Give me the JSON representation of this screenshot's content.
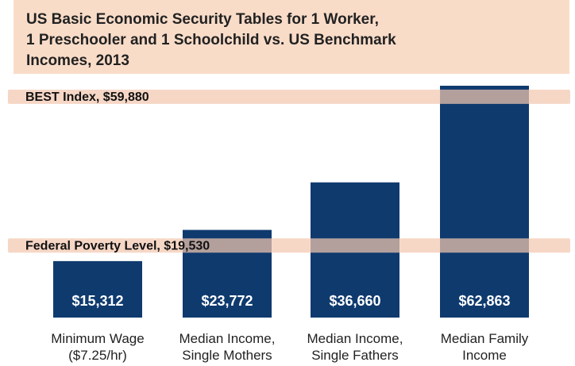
{
  "chart_data": {
    "type": "bar",
    "title": "US Basic Economic Security Tables for 1 Worker,\n1 Preschooler and 1 Schoolchild vs. US Benchmark\nIncomes, 2013",
    "categories": [
      [
        "Minimum Wage",
        "($7.25/hr)"
      ],
      [
        "Median Income,",
        "Single Mothers"
      ],
      [
        "Median Income,",
        "Single Fathers"
      ],
      [
        "Median Family",
        "Income"
      ]
    ],
    "values": [
      15312,
      23772,
      36660,
      62863
    ],
    "value_labels": [
      "$15,312",
      "$23,772",
      "$36,660",
      "$62,863"
    ],
    "reference_lines": [
      {
        "label": "BEST Index,  $59,880",
        "value": 59880
      },
      {
        "label": "Federal Poverty Level, $19,530",
        "value": 19530
      }
    ],
    "ylim": [
      0,
      62863
    ],
    "grid": false,
    "colors": {
      "bar": "#0f3a6e",
      "band": "#f2c7b0",
      "title_bg": "#f9dcc8"
    }
  }
}
